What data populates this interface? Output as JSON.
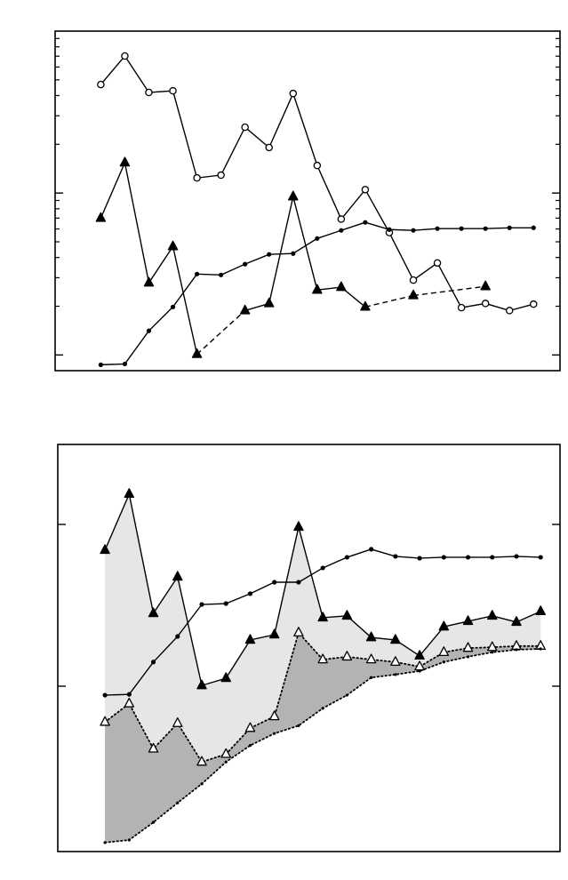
{
  "chart_data": [
    {
      "type": "line",
      "yscale": "log",
      "x": [
        1,
        2,
        3,
        4,
        5,
        6,
        7,
        8,
        9,
        10,
        11,
        12,
        13,
        14,
        15,
        16,
        17,
        18,
        19
      ],
      "xlim": [
        -0.9,
        20.1
      ],
      "ylim": [
        0.8,
        100
      ],
      "yticks": [
        1,
        10
      ],
      "yminorticks": [
        2,
        3,
        4,
        5,
        6,
        7,
        8,
        9,
        20,
        30,
        40,
        50,
        60,
        70,
        80,
        90
      ],
      "ticks_both_sides": true,
      "series": [
        {
          "color": "#000000",
          "marker": "circle-open",
          "line": "solid",
          "values": [
            46.8,
            70.2,
            41.8,
            42.8,
            12.4,
            12.9,
            25.5,
            19.1,
            41.2,
            14.8,
            6.9,
            10.5,
            5.7,
            2.9,
            3.7,
            1.96,
            2.08,
            1.88,
            2.06
          ]
        },
        {
          "color": "#000000",
          "marker": "triangle-filled",
          "line": "solid",
          "gap_style": "dashed",
          "values": [
            7.0,
            15.4,
            2.79,
            4.68,
            1.01,
            null,
            1.88,
            2.08,
            9.5,
            2.52,
            2.62,
            1.98,
            null,
            2.33,
            null,
            null,
            2.65,
            null,
            null
          ]
        },
        {
          "color": "#000000",
          "marker": "dot",
          "line": "solid",
          "values": [
            0.87,
            0.88,
            1.41,
            1.98,
            3.16,
            3.12,
            3.64,
            4.18,
            4.23,
            5.24,
            5.88,
            6.59,
            5.95,
            5.88,
            6.03,
            6.03,
            6.03,
            6.1,
            6.1
          ]
        }
      ]
    },
    {
      "type": "line",
      "yscale": "log",
      "x": [
        1,
        2,
        3,
        4,
        5,
        6,
        7,
        8,
        9,
        10,
        11,
        12,
        13,
        14,
        15,
        16,
        17,
        18,
        19
      ],
      "xlim": [
        -0.95,
        19.8
      ],
      "ylim": [
        0.095,
        31.2
      ],
      "yticks": [
        1,
        10
      ],
      "fill_between_consecutive": true,
      "series": [
        {
          "color": "#000000",
          "marker": "triangle-filled",
          "line": "solid",
          "fill": "#e6e6e6",
          "values": [
            6.93,
            15.4,
            2.82,
            4.74,
            1.01,
            1.12,
            1.93,
            2.08,
            9.63,
            2.65,
            2.72,
            2.0,
            1.93,
            1.54,
            2.33,
            2.52,
            2.72,
            2.49,
            2.9
          ]
        },
        {
          "color": "#000000",
          "marker": "triangle-open",
          "line": "dotted",
          "fill": "#b3b3b3",
          "values": [
            0.6,
            0.78,
            0.41,
            0.59,
            0.34,
            0.38,
            0.55,
            0.65,
            2.14,
            1.46,
            1.52,
            1.46,
            1.41,
            1.32,
            1.62,
            1.72,
            1.74,
            1.77,
            1.77
          ]
        },
        {
          "color": "#000000",
          "marker": "dot-small",
          "line": "dotted",
          "values": [
            0.108,
            0.112,
            0.144,
            0.19,
            0.249,
            0.34,
            0.43,
            0.51,
            0.57,
            0.73,
            0.88,
            1.13,
            1.18,
            1.24,
            1.41,
            1.52,
            1.62,
            1.68,
            1.7
          ]
        },
        {
          "color": "#000000",
          "marker": "dot",
          "line": "solid",
          "values": [
            0.88,
            0.89,
            1.41,
            2.03,
            3.2,
            3.24,
            3.73,
            4.39,
            4.39,
            5.38,
            6.26,
            7.02,
            6.34,
            6.18,
            6.26,
            6.26,
            6.26,
            6.34,
            6.26
          ]
        }
      ]
    }
  ]
}
